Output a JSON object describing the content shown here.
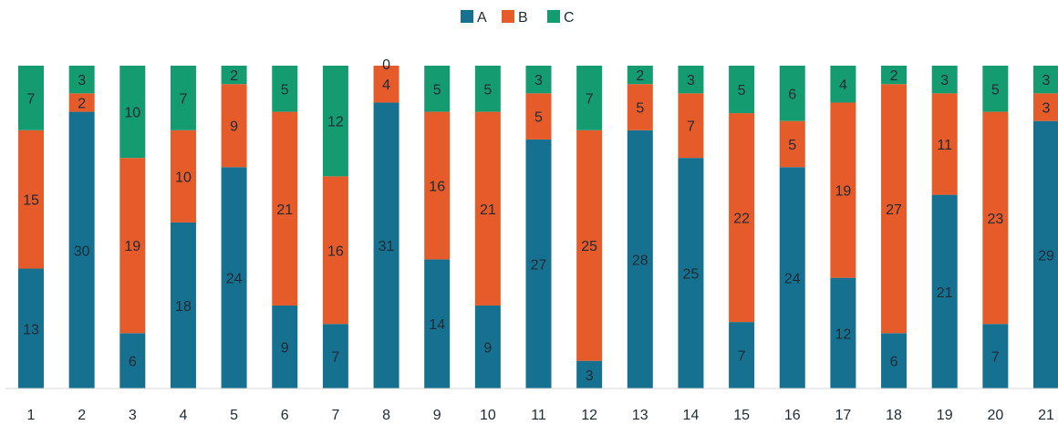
{
  "chart_data": {
    "type": "bar",
    "stacked": true,
    "normalized_to_100": true,
    "grid": false,
    "legend_placement": "top-center",
    "categories": [
      "1",
      "2",
      "3",
      "4",
      "5",
      "6",
      "7",
      "8",
      "9",
      "10",
      "11",
      "12",
      "13",
      "14",
      "15",
      "16",
      "17",
      "18",
      "19",
      "20",
      "21"
    ],
    "series": [
      {
        "name": "A",
        "color": "#16708f",
        "values": [
          13,
          30,
          6,
          18,
          24,
          9,
          7,
          31,
          14,
          9,
          27,
          3,
          28,
          25,
          7,
          24,
          12,
          6,
          21,
          7,
          29
        ]
      },
      {
        "name": "B",
        "color": "#e55b2a",
        "values": [
          15,
          2,
          19,
          10,
          9,
          21,
          16,
          4,
          16,
          21,
          5,
          25,
          5,
          7,
          22,
          5,
          19,
          27,
          11,
          23,
          3
        ]
      },
      {
        "name": "C",
        "color": "#159b70",
        "values": [
          7,
          3,
          10,
          7,
          2,
          5,
          12,
          0,
          5,
          5,
          3,
          7,
          2,
          3,
          5,
          6,
          4,
          2,
          3,
          5,
          3
        ]
      }
    ]
  }
}
